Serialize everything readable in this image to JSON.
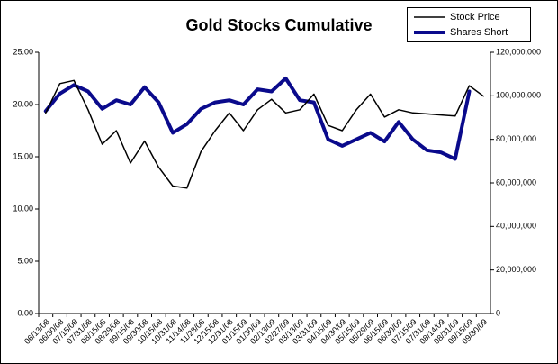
{
  "chart_data": {
    "type": "line",
    "title": "Gold Stocks Cumulative",
    "categories": [
      "06/13/08",
      "06/30/08",
      "07/15/08",
      "07/31/08",
      "08/15/08",
      "08/29/08",
      "09/15/08",
      "09/30/08",
      "10/15/08",
      "10/31/08",
      "11/14/08",
      "11/28/08",
      "12/15/08",
      "12/31/08",
      "01/15/09",
      "01/30/09",
      "02/13/09",
      "02/27/09",
      "03/13/09",
      "03/31/09",
      "04/15/09",
      "04/30/09",
      "05/15/09",
      "05/29/09",
      "06/15/09",
      "06/30/09",
      "07/15/09",
      "07/31/09",
      "08/14/09",
      "08/31/09",
      "09/15/09",
      "09/30/09"
    ],
    "series": [
      {
        "name": "Stock Price",
        "color": "#000000",
        "axis": "y",
        "values": [
          19.2,
          22.0,
          22.3,
          19.5,
          16.2,
          17.5,
          14.4,
          16.5,
          14.0,
          12.2,
          12.0,
          15.5,
          17.5,
          19.2,
          17.5,
          19.5,
          20.5,
          19.2,
          19.5,
          21.0,
          18.0,
          17.5,
          19.5,
          21.0,
          18.8,
          19.5,
          19.2,
          19.1,
          19.0,
          18.9,
          21.8,
          20.8
        ]
      },
      {
        "name": "Shares Short",
        "color": "#0a0a8c",
        "axis": "y2",
        "values": [
          93000000,
          101000000,
          105000000,
          102000000,
          94000000,
          98000000,
          96000000,
          104000000,
          97000000,
          83000000,
          87000000,
          94000000,
          97000000,
          98000000,
          96000000,
          103000000,
          102000000,
          108000000,
          98000000,
          97000000,
          80000000,
          77000000,
          80000000,
          83000000,
          79000000,
          88000000,
          80000000,
          75000000,
          74000000,
          71000000,
          102000000,
          null
        ]
      }
    ],
    "ylim": [
      0,
      25
    ],
    "yticks": [
      {
        "value": 0,
        "label": "0.00"
      },
      {
        "value": 5,
        "label": "5.00"
      },
      {
        "value": 10,
        "label": "10.00"
      },
      {
        "value": 15,
        "label": "15.00"
      },
      {
        "value": 20,
        "label": "20.00"
      },
      {
        "value": 25,
        "label": "25.00"
      }
    ],
    "y2lim": [
      0,
      120000000
    ],
    "y2ticks": [
      0,
      {
        "value": 20000000,
        "label": "20,000,000"
      },
      {
        "value": 40000000,
        "label": "40,000,000"
      },
      {
        "value": 60000000,
        "label": "60,000,000"
      },
      {
        "value": 80000000,
        "label": "80,000,000"
      },
      {
        "value": 100000000,
        "label": "100,000,000"
      },
      {
        "value": 120000000,
        "label": "120,000,000"
      }
    ],
    "legend": "top-right",
    "grid": false
  }
}
